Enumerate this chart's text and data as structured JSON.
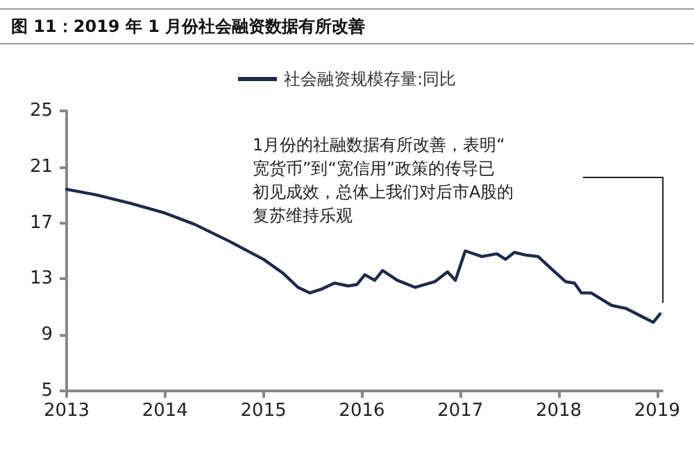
{
  "chart_data": {
    "type": "line",
    "title": "图 11：2019 年 1 月份社会融资数据有所改善",
    "x": [
      2013,
      2013.3,
      2013.65,
      2014,
      2014.3,
      2014.65,
      2015,
      2015.2,
      2015.35,
      2015.47,
      2015.6,
      2015.72,
      2015.86,
      2015.95,
      2016.03,
      2016.13,
      2016.21,
      2016.36,
      2016.54,
      2016.74,
      2016.87,
      2016.95,
      2017.05,
      2017.22,
      2017.37,
      2017.46,
      2017.55,
      2017.67,
      2017.79,
      2017.93,
      2018.07,
      2018.16,
      2018.23,
      2018.33,
      2018.54,
      2018.68,
      2018.96,
      2019.03
    ],
    "series": [
      {
        "name": "社会融资规模存量:同比",
        "color": "#1f2a4a",
        "values": [
          19.4,
          19.0,
          18.4,
          17.7,
          16.9,
          15.7,
          14.4,
          13.4,
          12.4,
          12.0,
          12.3,
          12.7,
          12.5,
          12.6,
          13.3,
          12.9,
          13.6,
          12.9,
          12.4,
          12.8,
          13.5,
          12.9,
          15.0,
          14.6,
          14.8,
          14.4,
          14.9,
          14.7,
          14.6,
          13.7,
          12.8,
          12.7,
          12.0,
          12.0,
          11.1,
          10.9,
          9.9,
          10.5
        ]
      }
    ],
    "xlim": [
      2013,
      2019.05
    ],
    "xticks": [
      2013,
      2014,
      2015,
      2016,
      2017,
      2018,
      2019
    ],
    "ylim": [
      5,
      25
    ],
    "yticks": [
      5,
      9,
      13,
      17,
      21,
      25
    ],
    "grid": false,
    "legend": "top",
    "marker": "none",
    "line_style": "solid",
    "annotations": [
      "1月份的社融数据有所改善，表明“宽货币”到“宽信用”政策的传导已初见成效，总体上我们对后市A股的复苏维持乐观"
    ]
  }
}
